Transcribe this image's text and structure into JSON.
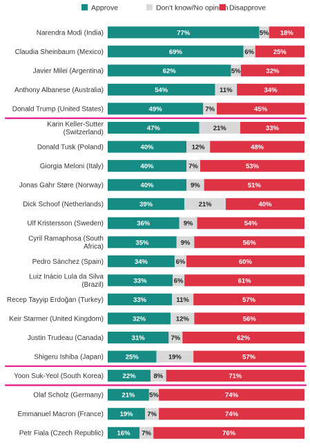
{
  "colors": {
    "approve": "#178c84",
    "no_opinion": "#d9d9d9",
    "disapprove": "#dd3344",
    "highlight": "#e8178a",
    "label_on_dark": "#ffffff",
    "label_on_light": "#222222"
  },
  "chart_data": {
    "type": "bar",
    "orientation": "horizontal",
    "stacked": true,
    "normalized_to": 100,
    "unit": "%",
    "legend_position": "top-left",
    "grid": false,
    "series": [
      {
        "key": "approve",
        "name": "Approve"
      },
      {
        "key": "no_opinion",
        "name": "Don't know/No opinion"
      },
      {
        "key": "disapprove",
        "name": "Disapprove"
      }
    ],
    "rows": [
      {
        "lines": [
          "Narendra Modi (India)"
        ],
        "approve": 77,
        "no_opinion": 5,
        "disapprove": 18,
        "highlight": false
      },
      {
        "lines": [
          "Claudia Sheinbaum (Mexico)"
        ],
        "approve": 69,
        "no_opinion": 6,
        "disapprove": 25,
        "highlight": false
      },
      {
        "lines": [
          "Javier Milei (Argentina)"
        ],
        "approve": 62,
        "no_opinion": 5,
        "disapprove": 32,
        "highlight": false
      },
      {
        "lines": [
          "Anthony Albanese (Australia)"
        ],
        "approve": 54,
        "no_opinion": 11,
        "disapprove": 34,
        "highlight": false
      },
      {
        "lines": [
          "Donald Trump (United States)"
        ],
        "approve": 49,
        "no_opinion": 7,
        "disapprove": 45,
        "highlight": true
      },
      {
        "lines": [
          "Karin Keller-Sutter",
          "(Switzerland)"
        ],
        "approve": 47,
        "no_opinion": 21,
        "disapprove": 33,
        "highlight": false
      },
      {
        "lines": [
          "Donald Tusk (Poland)"
        ],
        "approve": 40,
        "no_opinion": 12,
        "disapprove": 48,
        "highlight": false
      },
      {
        "lines": [
          "Giorgia Meloni (Italy)"
        ],
        "approve": 40,
        "no_opinion": 7,
        "disapprove": 53,
        "highlight": false
      },
      {
        "lines": [
          "Jonas Gahr Støre (Norway)"
        ],
        "approve": 40,
        "no_opinion": 9,
        "disapprove": 51,
        "highlight": false
      },
      {
        "lines": [
          "Dick Schoof (Netherlands)"
        ],
        "approve": 39,
        "no_opinion": 21,
        "disapprove": 40,
        "highlight": false
      },
      {
        "lines": [
          "Ulf Kristersson (Sweden)"
        ],
        "approve": 36,
        "no_opinion": 9,
        "disapprove": 54,
        "highlight": false
      },
      {
        "lines": [
          "Cyril Ramaphosa (South",
          "Africa)"
        ],
        "approve": 35,
        "no_opinion": 9,
        "disapprove": 56,
        "highlight": false
      },
      {
        "lines": [
          "Pedro Sánchez (Spain)"
        ],
        "approve": 34,
        "no_opinion": 6,
        "disapprove": 60,
        "highlight": false
      },
      {
        "lines": [
          "Luiz Inácio Lula da Silva",
          "(Brazil)"
        ],
        "approve": 33,
        "no_opinion": 6,
        "disapprove": 61,
        "highlight": false
      },
      {
        "lines": [
          "Recep Tayyip Erdoğan (Turkey)"
        ],
        "approve": 33,
        "no_opinion": 11,
        "disapprove": 57,
        "highlight": false
      },
      {
        "lines": [
          "Keir Starmer (United Kingdom)"
        ],
        "approve": 32,
        "no_opinion": 12,
        "disapprove": 56,
        "highlight": false
      },
      {
        "lines": [
          "Justin Trudeau (Canada)"
        ],
        "approve": 31,
        "no_opinion": 7,
        "disapprove": 62,
        "highlight": false
      },
      {
        "lines": [
          "Shigeru Ishiba (Japan)"
        ],
        "approve": 25,
        "no_opinion": 19,
        "disapprove": 57,
        "highlight": true
      },
      {
        "lines": [
          "Yoon Suk-Yeol (South Korea)"
        ],
        "approve": 22,
        "no_opinion": 8,
        "disapprove": 71,
        "highlight": true
      },
      {
        "lines": [
          "Olaf Scholz (Germany)"
        ],
        "approve": 21,
        "no_opinion": 5,
        "disapprove": 74,
        "highlight": false
      },
      {
        "lines": [
          "Emmanuel Macron (France)"
        ],
        "approve": 19,
        "no_opinion": 7,
        "disapprove": 74,
        "highlight": false
      },
      {
        "lines": [
          "Petr Fiala (Czech Republic)"
        ],
        "approve": 16,
        "no_opinion": 7,
        "disapprove": 76,
        "highlight": false
      }
    ]
  }
}
